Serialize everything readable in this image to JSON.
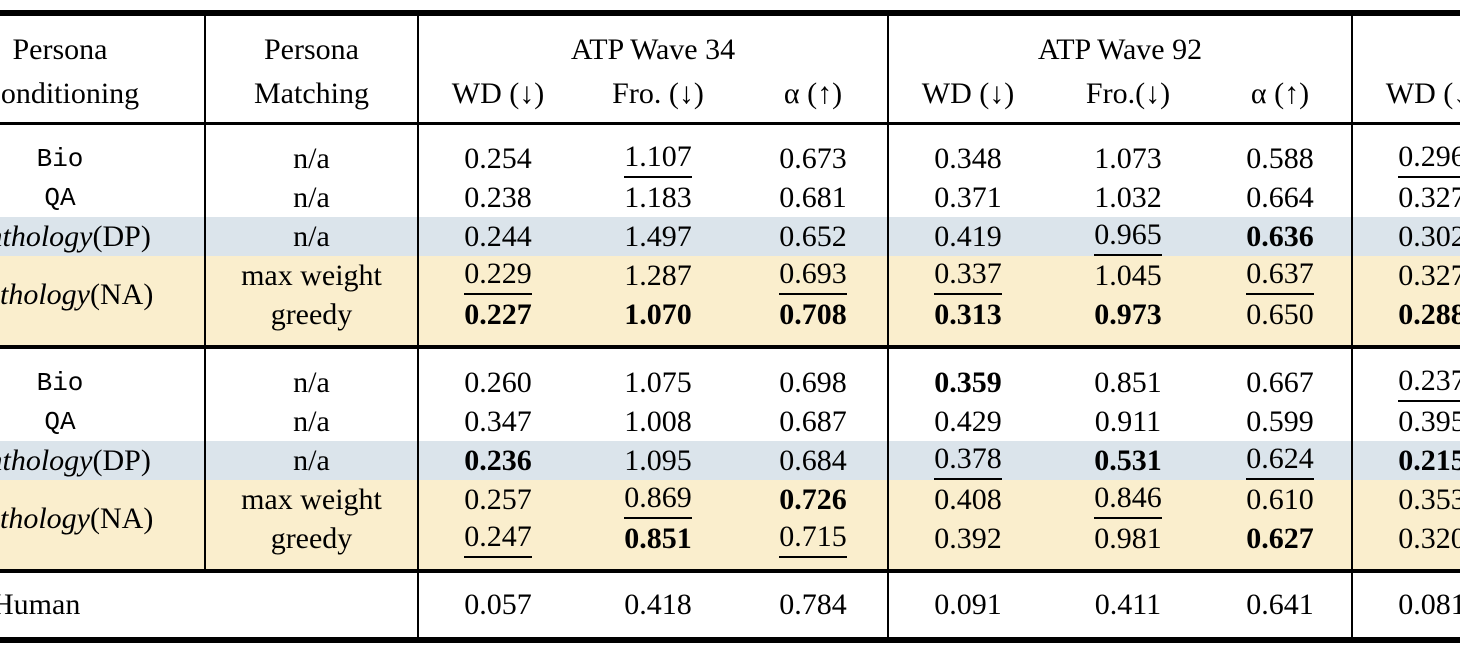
{
  "colors": {
    "highlight_blue": "#dbe4eb",
    "highlight_yellow": "#faeecd",
    "rule_black": "#000000",
    "text": "#000000",
    "background": "#ffffff"
  },
  "table": {
    "headers": {
      "col1_line1": "Persona",
      "col1_line2": "Conditioning",
      "col2_line1": "Persona",
      "col2_line2": "Matching",
      "wave34": {
        "title": "ATP Wave 34",
        "subs": [
          "WD (↓)",
          "Fro. (↓)",
          "α (↑)"
        ]
      },
      "wave92": {
        "title": "ATP Wave 92",
        "subs": [
          "WD (↓)",
          "Fro.(↓)",
          "α (↑)"
        ]
      },
      "extra": {
        "title": "",
        "subs": [
          "WD (↓)"
        ]
      }
    },
    "blocks": [
      {
        "rows": [
          {
            "label_mono": "Bio",
            "match": "n/a",
            "bg": "",
            "cells": [
              {
                "t": "0.254"
              },
              {
                "t": "1.107",
                "u": true
              },
              {
                "t": "0.673"
              },
              {
                "t": "0.348"
              },
              {
                "t": "1.073"
              },
              {
                "t": "0.588"
              },
              {
                "t": "0.296",
                "u": true
              }
            ]
          },
          {
            "label_mono": "QA",
            "match": "n/a",
            "bg": "",
            "cells": [
              {
                "t": "0.238"
              },
              {
                "t": "1.183"
              },
              {
                "t": "0.681"
              },
              {
                "t": "0.371"
              },
              {
                "t": "1.032"
              },
              {
                "t": "0.664"
              },
              {
                "t": "0.327"
              }
            ]
          },
          {
            "label_italic": "Anthology",
            "label_rest": " (DP)",
            "match": "n/a",
            "bg": "blue",
            "cells": [
              {
                "t": "0.244"
              },
              {
                "t": "1.497"
              },
              {
                "t": "0.652"
              },
              {
                "t": "0.419"
              },
              {
                "t": "0.965",
                "u": true
              },
              {
                "t": "0.636",
                "b": true
              },
              {
                "t": "0.302"
              }
            ]
          },
          {
            "match": "max weight",
            "bg": "yellow",
            "cells": [
              {
                "t": "0.229",
                "u": true
              },
              {
                "t": "1.287"
              },
              {
                "t": "0.693",
                "u": true
              },
              {
                "t": "0.337",
                "u": true
              },
              {
                "t": "1.045"
              },
              {
                "t": "0.637",
                "u": true
              },
              {
                "t": "0.327"
              }
            ]
          },
          {
            "match": "greedy",
            "bg": "yellow",
            "cells": [
              {
                "t": "0.227",
                "b": true
              },
              {
                "t": "1.070",
                "b": true
              },
              {
                "t": "0.708",
                "b": true
              },
              {
                "t": "0.313",
                "b": true
              },
              {
                "t": "0.973",
                "b": true
              },
              {
                "t": "0.650"
              },
              {
                "t": "0.288",
                "b": true
              }
            ]
          }
        ],
        "span_label": {
          "italic": "Anthology",
          "rest": " (NA)"
        }
      },
      {
        "rows": [
          {
            "label_mono": "Bio",
            "match": "n/a",
            "bg": "",
            "cells": [
              {
                "t": "0.260"
              },
              {
                "t": "1.075"
              },
              {
                "t": "0.698"
              },
              {
                "t": "0.359",
                "b": true
              },
              {
                "t": "0.851"
              },
              {
                "t": "0.667"
              },
              {
                "t": "0.237",
                "u": true
              }
            ]
          },
          {
            "label_mono": "QA",
            "match": "n/a",
            "bg": "",
            "cells": [
              {
                "t": "0.347"
              },
              {
                "t": "1.008"
              },
              {
                "t": "0.687"
              },
              {
                "t": "0.429"
              },
              {
                "t": "0.911"
              },
              {
                "t": "0.599"
              },
              {
                "t": "0.395"
              }
            ]
          },
          {
            "label_italic": "Anthology",
            "label_rest": " (DP)",
            "match": "n/a",
            "bg": "blue",
            "cells": [
              {
                "t": "0.236",
                "b": true
              },
              {
                "t": "1.095"
              },
              {
                "t": "0.684"
              },
              {
                "t": "0.378",
                "u": true
              },
              {
                "t": "0.531",
                "b": true
              },
              {
                "t": "0.624",
                "u": true
              },
              {
                "t": "0.215",
                "b": true
              }
            ]
          },
          {
            "match": "max weight",
            "bg": "yellow",
            "cells": [
              {
                "t": "0.257"
              },
              {
                "t": "0.869",
                "u": true
              },
              {
                "t": "0.726",
                "b": true
              },
              {
                "t": "0.408"
              },
              {
                "t": "0.846",
                "u": true
              },
              {
                "t": "0.610"
              },
              {
                "t": "0.353"
              }
            ]
          },
          {
            "match": "greedy",
            "bg": "yellow",
            "cells": [
              {
                "t": "0.247",
                "u": true
              },
              {
                "t": "0.851",
                "b": true
              },
              {
                "t": "0.715",
                "u": true
              },
              {
                "t": "0.392"
              },
              {
                "t": "0.981"
              },
              {
                "t": "0.627",
                "b": true
              },
              {
                "t": "0.320"
              }
            ]
          }
        ],
        "span_label": {
          "italic": "Anthology",
          "rest": " (NA)"
        }
      }
    ],
    "human": {
      "label": "Human",
      "values": [
        "0.057",
        "0.418",
        "0.784",
        "0.091",
        "0.411",
        "0.641",
        "0.081"
      ]
    }
  }
}
